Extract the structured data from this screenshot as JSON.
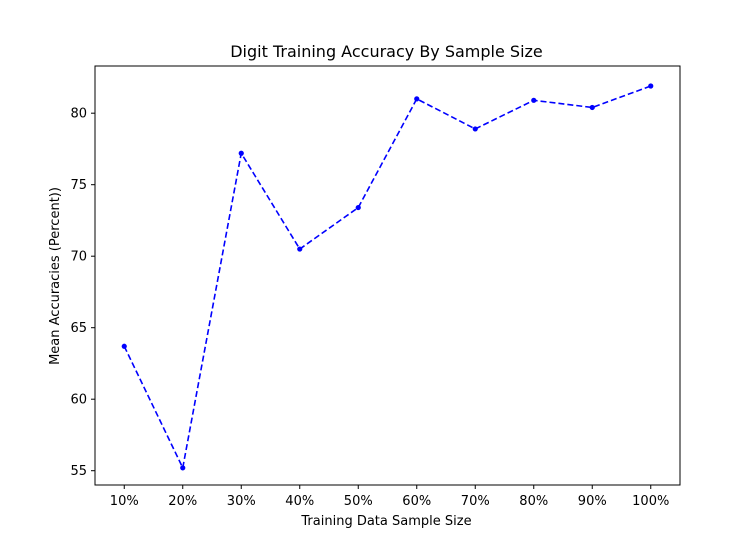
{
  "chart_data": {
    "type": "line",
    "title": "Digit Training Accuracy By Sample Size",
    "xlabel": "Training Data Sample Size",
    "ylabel": "Mean Accuracies (Percent))",
    "categories": [
      "10%",
      "20%",
      "30%",
      "40%",
      "50%",
      "60%",
      "70%",
      "80%",
      "90%",
      "100%"
    ],
    "series": [
      {
        "values": [
          63.7,
          55.2,
          77.2,
          70.5,
          73.4,
          81.0,
          78.9,
          80.9,
          80.4,
          81.9
        ],
        "color": "#0000ff",
        "line_style": "dashed",
        "marker": "point"
      }
    ],
    "ylim": [
      54.0,
      83.3
    ],
    "yticks": [
      55,
      60,
      65,
      70,
      75,
      80
    ],
    "grid": false,
    "legend": "none"
  }
}
